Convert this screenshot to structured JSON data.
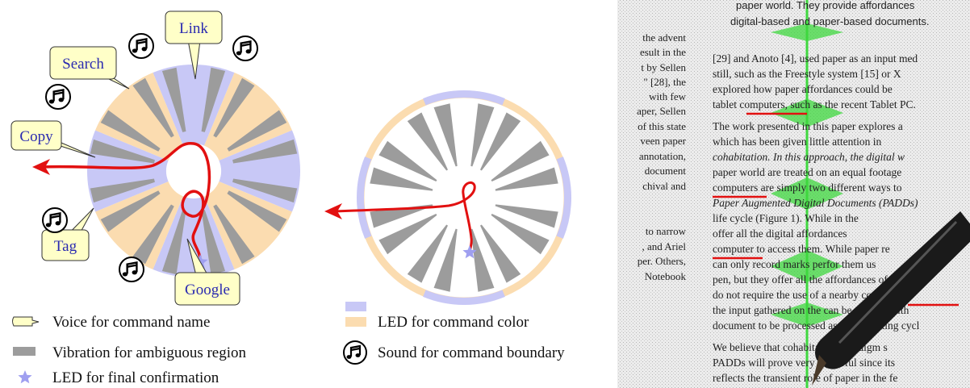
{
  "left_diagram": {
    "callouts": [
      "Link",
      "Search",
      "Copy",
      "Tag",
      "Google"
    ]
  },
  "legend": {
    "voice": "Voice for command name",
    "vibration": "Vibration for ambiguous region",
    "led_confirm": "LED for final confirmation",
    "led_color": "LED for command color",
    "sound": "Sound for command boundary"
  },
  "photo": {
    "side_column": [
      "the advent",
      "esult in the",
      "t by Sellen",
      "\" [28], the",
      "with few",
      "aper, Sellen",
      "of this state",
      "veen paper",
      "annotation,",
      "document",
      "chival and",
      "to narrow",
      ", and Ariel",
      "per. Others,",
      "Notebook"
    ],
    "header_lines": [
      "paper world. They provide affordances",
      "digital-based and paper-based documents."
    ],
    "main_column": [
      "[29] and Anoto [4], used paper as an input med",
      "still, such as the Freestyle system [15] or X",
      "explored how paper affordances could be",
      "tablet computers, such as the recent Tablet PC.",
      "The work presented in this paper explores a",
      "which has been given little attention in",
      "cohabitation. In this approach, the digital w",
      "paper world are treated on an equal footage",
      "computers are simply two different ways to",
      "Paper Augmented Digital Documents (PADDs)",
      "life cycle (Figure 1). While in the",
      "offer all the digital affordances",
      "computer to access them. While paper re",
      "can only record marks perfor them us",
      "pen, but they offer all the affordances of paper",
      "do not require the use of a nearby computer.",
      "the input gathered on the can be merged with",
      "document to be processed as a new editing cycl",
      "We believe that cohabitation paradigm s",
      "PADDs will prove very powerful since its",
      "reflects the transient role of paper in the fe"
    ]
  }
}
